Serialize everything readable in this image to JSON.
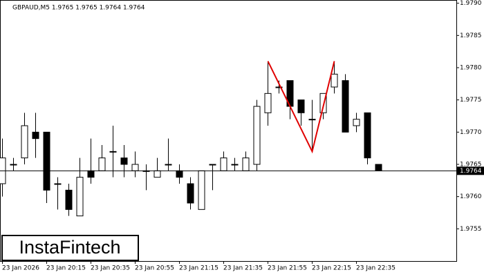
{
  "chart_data": {
    "type": "candlestick",
    "title": "GBPAUD,M5  1.9765 1.9765 1.9764 1.9764",
    "logo": "InstaFintech",
    "categories": [
      "23 Jan 2026",
      null,
      null,
      null,
      "23 Jan 20:15",
      null,
      null,
      null,
      "23 Jan 20:35",
      null,
      null,
      null,
      "23 Jan 20:55",
      null,
      null,
      null,
      "23 Jan 21:15",
      null,
      null,
      null,
      "23 Jan 21:35",
      null,
      null,
      null,
      "23 Jan 21:55",
      null,
      null,
      null,
      "23 Jan 22:15",
      null,
      null,
      null,
      "23 Jan 22:35",
      null,
      null
    ],
    "open": [
      1.9762,
      1.9765,
      1.9766,
      1.977,
      1.977,
      1.9762,
      1.9761,
      1.9757,
      1.9764,
      1.9764,
      1.9767,
      1.9766,
      1.9764,
      1.9764,
      1.9763,
      1.9765,
      1.9764,
      1.9762,
      1.9758,
      1.9765,
      1.9764,
      1.9765,
      1.9764,
      1.9765,
      1.9773,
      1.9777,
      1.9778,
      1.9775,
      1.9772,
      1.9773,
      1.9777,
      1.9778,
      1.9771,
      1.9773,
      1.9765
    ],
    "high": [
      1.9769,
      1.9766,
      1.9773,
      1.9773,
      1.977,
      1.9763,
      1.9762,
      1.9766,
      1.9769,
      1.9768,
      1.9771,
      1.9768,
      1.9767,
      1.9765,
      1.9766,
      1.9769,
      1.9765,
      1.9763,
      1.9764,
      1.9765,
      1.9767,
      1.9766,
      1.9767,
      1.9775,
      1.9781,
      1.9778,
      1.9778,
      1.9775,
      1.9775,
      1.9776,
      1.9781,
      1.9779,
      1.9773,
      1.9773,
      1.9765
    ],
    "low": [
      1.976,
      1.9764,
      1.9765,
      1.9766,
      1.9759,
      1.9758,
      1.9757,
      1.9757,
      1.9762,
      1.9764,
      1.9763,
      1.9763,
      1.9763,
      1.9761,
      1.9763,
      1.9764,
      1.9762,
      1.9758,
      1.9758,
      1.9761,
      1.9764,
      1.9764,
      1.9764,
      1.9764,
      1.9771,
      1.9776,
      1.9772,
      1.9771,
      1.9767,
      1.9772,
      1.9776,
      1.977,
      1.977,
      1.9765,
      1.9764
    ],
    "close": [
      1.9766,
      1.9765,
      1.9771,
      1.9769,
      1.9761,
      1.9762,
      1.9758,
      1.9763,
      1.9763,
      1.9766,
      1.9767,
      1.9765,
      1.9765,
      1.9764,
      1.9764,
      1.9765,
      1.9763,
      1.9759,
      1.9764,
      1.9765,
      1.9766,
      1.9765,
      1.9766,
      1.9774,
      1.9776,
      1.9777,
      1.9774,
      1.9773,
      1.9772,
      1.9776,
      1.9779,
      1.977,
      1.9772,
      1.9766,
      1.9764
    ],
    "current_price": 1.9764,
    "pattern": {
      "color": "#e00000",
      "indices": [
        24,
        28,
        30
      ],
      "values": [
        1.9781,
        1.9767,
        1.9781
      ]
    },
    "ylim": [
      1.975,
      1.97905
    ],
    "yticks": [
      {
        "value": 1.979,
        "label": "1.9790"
      },
      1.9785,
      {
        "value": 1.978,
        "label": "1.9780"
      },
      1.9775,
      {
        "value": 1.977,
        "label": "1.9770"
      },
      1.9765,
      {
        "value": 1.976,
        "label": "1.9760"
      },
      1.9755
    ]
  }
}
